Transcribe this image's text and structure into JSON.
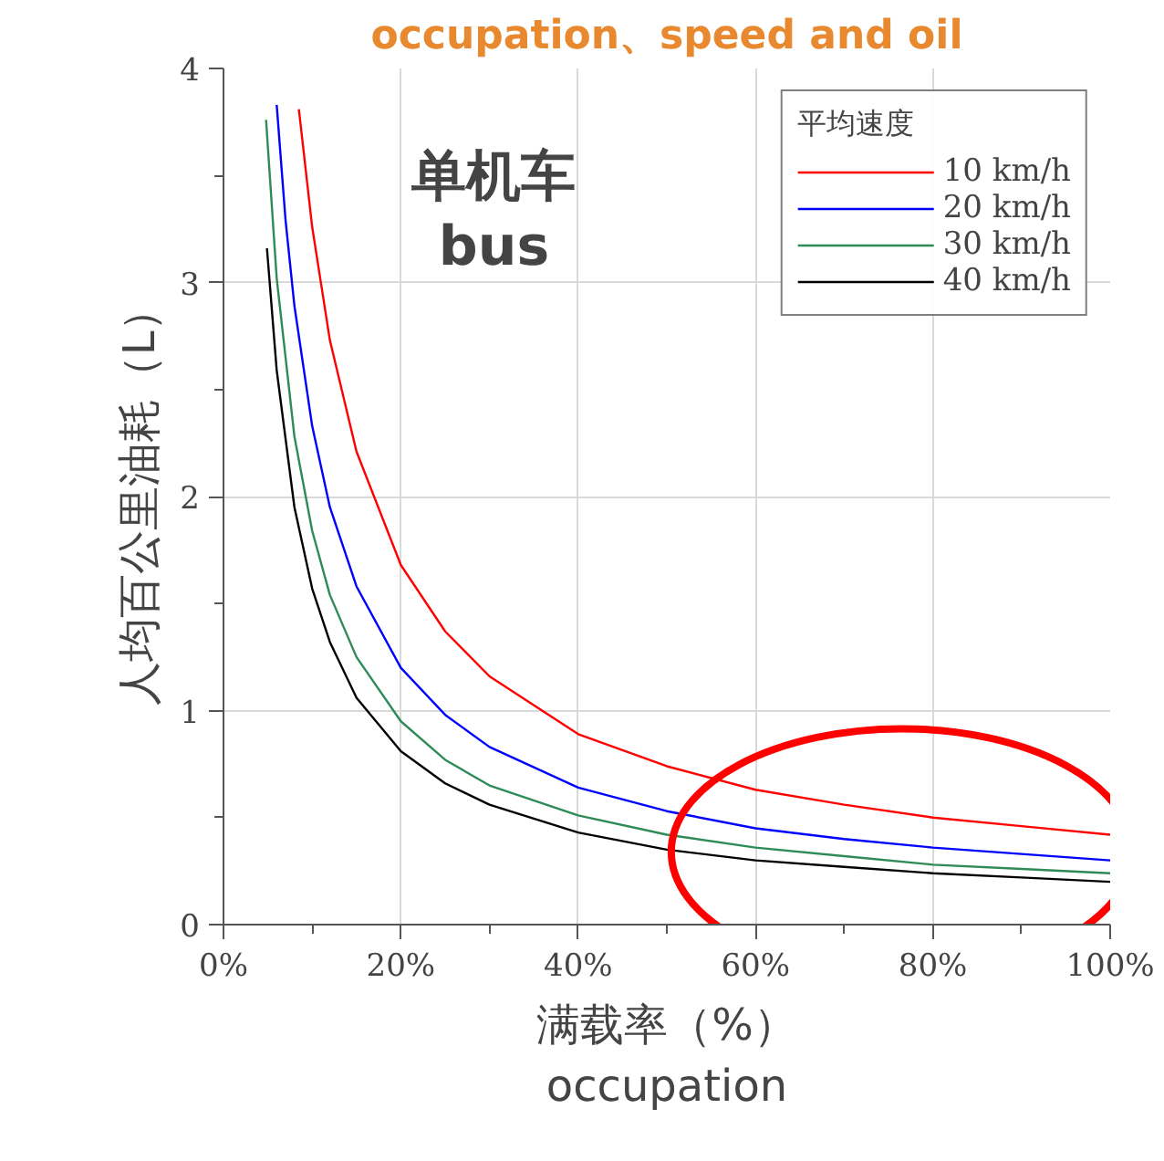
{
  "chart_data": {
    "type": "line",
    "title": "occupation、speed and oil",
    "xlabel": "满载率（%）\noccupation",
    "ylabel": "人均百公里油耗（L）",
    "annotations": [
      "单机车\nbus"
    ],
    "legend_title": "平均速度",
    "legend": "top right",
    "grid": true,
    "xlim": [
      0,
      100
    ],
    "ylim": [
      0,
      4
    ],
    "xticks": [
      {
        "value": 0,
        "label": "0%"
      },
      {
        "value": 20,
        "label": "20%"
      },
      {
        "value": 40,
        "label": "40%"
      },
      {
        "value": 60,
        "label": "60%"
      },
      {
        "value": 80,
        "label": "80%"
      },
      {
        "value": 100,
        "label": "100%"
      }
    ],
    "yticks": [
      0,
      1,
      2,
      3,
      4
    ],
    "series": [
      {
        "name": "10 km/h",
        "color": "#ff0000",
        "x": [
          8.5,
          10,
          12,
          15,
          20,
          25,
          30,
          40,
          50,
          60,
          70,
          80,
          90,
          100
        ],
        "values": [
          3.81,
          3.26,
          2.73,
          2.21,
          1.68,
          1.37,
          1.16,
          0.89,
          0.74,
          0.63,
          0.56,
          0.5,
          0.46,
          0.42
        ]
      },
      {
        "name": "20 km/h",
        "color": "#0000ff",
        "x": [
          6,
          7,
          8,
          10,
          12,
          15,
          20,
          25,
          30,
          40,
          50,
          60,
          70,
          80,
          90,
          100
        ],
        "values": [
          3.83,
          3.29,
          2.89,
          2.33,
          1.95,
          1.58,
          1.2,
          0.98,
          0.83,
          0.64,
          0.53,
          0.45,
          0.4,
          0.36,
          0.33,
          0.3
        ]
      },
      {
        "name": "30 km/h",
        "color": "#2e8b57",
        "x": [
          4.8,
          6,
          8,
          10,
          12,
          15,
          20,
          25,
          30,
          40,
          50,
          60,
          70,
          80,
          90,
          100
        ],
        "values": [
          3.76,
          3.02,
          2.28,
          1.84,
          1.54,
          1.25,
          0.95,
          0.77,
          0.65,
          0.51,
          0.42,
          0.36,
          0.32,
          0.28,
          0.26,
          0.24
        ]
      },
      {
        "name": "40 km/h",
        "color": "#000000",
        "x": [
          4.9,
          6,
          8,
          10,
          12,
          15,
          20,
          25,
          30,
          40,
          50,
          60,
          70,
          80,
          90,
          100
        ],
        "values": [
          3.16,
          2.59,
          1.95,
          1.57,
          1.32,
          1.06,
          0.81,
          0.66,
          0.56,
          0.43,
          0.35,
          0.3,
          0.27,
          0.24,
          0.22,
          0.2
        ]
      }
    ]
  }
}
